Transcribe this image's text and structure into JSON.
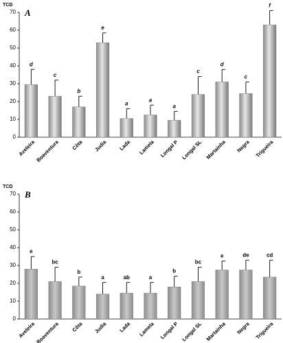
{
  "chart_data": [
    {
      "type": "bar",
      "panel_label": "A",
      "ylabel": "TCD",
      "categories": [
        "Aveleira",
        "Boaventura",
        "Côta",
        "Judia",
        "Lada",
        "Lamela",
        "Longal P",
        "Longal SL",
        "Martainha",
        "Negra",
        "Trigueira"
      ],
      "values": [
        29.5,
        23,
        17,
        53,
        10.5,
        12.5,
        9.5,
        24,
        31,
        24.5,
        63
      ],
      "errors": [
        8.5,
        9,
        6,
        5.5,
        5.5,
        5.5,
        5,
        10,
        7,
        6.5,
        8
      ],
      "annotations": [
        "d",
        "c",
        "b",
        "e",
        "a",
        "a",
        "a",
        "c",
        "d",
        "c",
        "f"
      ],
      "color": "#b8b8b8",
      "ylim": [
        0,
        70
      ],
      "yticks": [
        0,
        10,
        20,
        30,
        40,
        50,
        60,
        70
      ]
    },
    {
      "type": "bar",
      "panel_label": "B",
      "ylabel": "TCD",
      "categories": [
        "Aveleira",
        "Boaventura",
        "Côta",
        "Judia",
        "Lada",
        "Lamela",
        "Longal P",
        "Longal SL",
        "Martainha",
        "Negra",
        "Trigueira"
      ],
      "values": [
        28,
        21,
        18.5,
        14,
        14.5,
        14.5,
        18,
        21,
        27.5,
        27.5,
        23.5
      ],
      "errors": [
        7,
        8,
        5,
        6.5,
        6,
        6,
        6,
        8,
        5,
        5.5,
        9.5
      ],
      "annotations": [
        "e",
        "bc",
        "b",
        "a",
        "ab",
        "a",
        "b",
        "bc",
        "e",
        "de",
        "cd"
      ],
      "color": "#a8a8a8",
      "ylim": [
        0,
        70
      ],
      "yticks": [
        0,
        10,
        20,
        30,
        40,
        50,
        60,
        70
      ]
    }
  ]
}
